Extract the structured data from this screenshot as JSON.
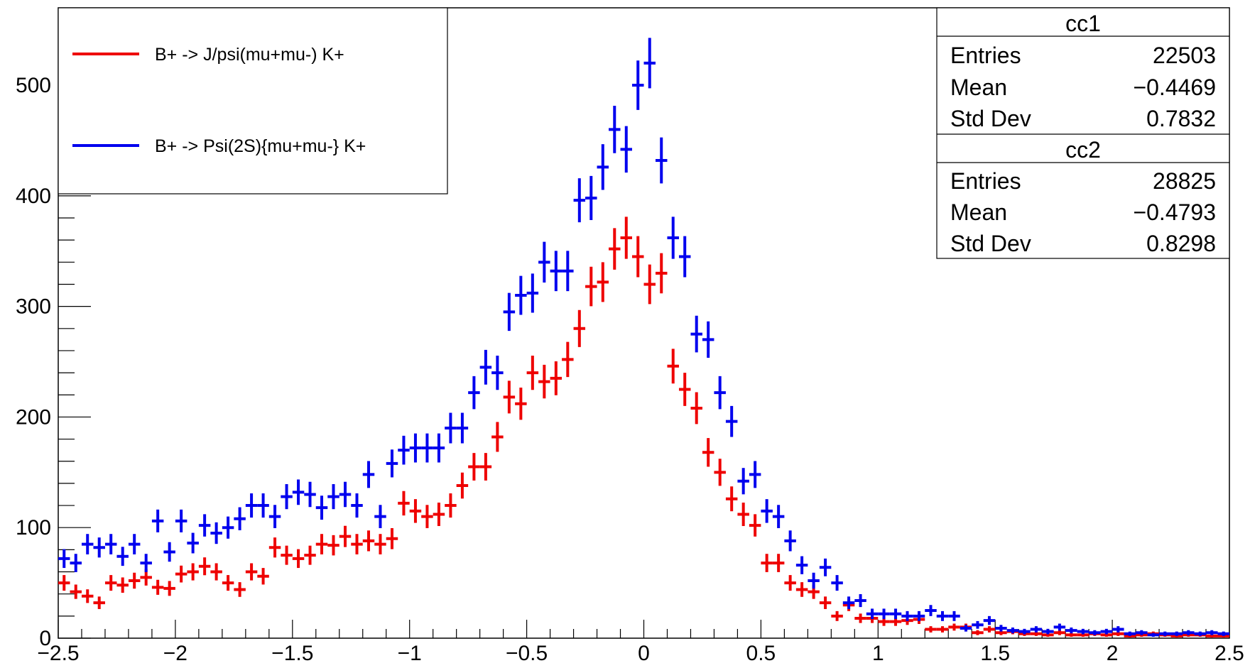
{
  "chart_data": {
    "type": "scatter",
    "title": "",
    "xlabel": "",
    "ylabel": "",
    "xlim": [
      -2.5,
      2.5
    ],
    "ylim": [
      0,
      570
    ],
    "x_ticks": [
      "−2.5",
      "−2",
      "−1.5",
      "−1",
      "−0.5",
      "0",
      "0.5",
      "1",
      "1.5",
      "2",
      "2.5"
    ],
    "y_ticks": [
      "0",
      "100",
      "200",
      "300",
      "400",
      "500"
    ],
    "bin_width": 0.05,
    "legend": {
      "placement": "top-left",
      "entries": [
        {
          "label": "B+ -> J/psi(mu+mu-) K+",
          "color": "#ee0000"
        },
        {
          "label": "B+ -> Psi(2S){mu+mu-} K+",
          "color": "#0000ee"
        }
      ]
    },
    "stats": [
      {
        "title": "cc1",
        "rows": [
          {
            "label": "Entries",
            "value": "22503"
          },
          {
            "label": "Mean",
            "value": "−0.4469"
          },
          {
            "label": "Std Dev",
            "value": "0.7832"
          }
        ]
      },
      {
        "title": "cc2",
        "rows": [
          {
            "label": "Entries",
            "value": "28825"
          },
          {
            "label": "Mean",
            "value": "−0.4793"
          },
          {
            "label": "Std Dev",
            "value": "0.8298"
          }
        ]
      }
    ],
    "series": [
      {
        "name": "B+ -> J/psi(mu+mu-) K+",
        "color": "#ee0000",
        "values": [
          50,
          42,
          38,
          32,
          50,
          48,
          52,
          55,
          46,
          45,
          58,
          60,
          65,
          60,
          50,
          44,
          60,
          56,
          82,
          75,
          72,
          75,
          85,
          84,
          92,
          85,
          88,
          85,
          90,
          122,
          115,
          110,
          112,
          120,
          138,
          155,
          155,
          182,
          218,
          212,
          240,
          232,
          235,
          252,
          280,
          318,
          322,
          352,
          362,
          345,
          320,
          330,
          246,
          225,
          208,
          168,
          150,
          126,
          112,
          102,
          68,
          68,
          50,
          44,
          42,
          32,
          20,
          30,
          18,
          18,
          15,
          15,
          16,
          17,
          8,
          8,
          10,
          10,
          5,
          8,
          5,
          6,
          4,
          4,
          3,
          5,
          3,
          3,
          4,
          3,
          4,
          2,
          3,
          4,
          3,
          2,
          3,
          3,
          2,
          2
        ]
      },
      {
        "name": "B+ -> Psi(2S){mu+mu-} K+",
        "color": "#0000ee",
        "values": [
          72,
          68,
          85,
          82,
          85,
          74,
          85,
          68,
          106,
          78,
          106,
          86,
          102,
          95,
          100,
          108,
          120,
          120,
          110,
          128,
          132,
          130,
          118,
          128,
          130,
          120,
          148,
          110,
          158,
          170,
          172,
          172,
          172,
          190,
          190,
          222,
          245,
          240,
          295,
          310,
          312,
          340,
          332,
          332,
          396,
          398,
          426,
          460,
          442,
          500,
          520,
          432,
          362,
          345,
          275,
          270,
          222,
          196,
          142,
          148,
          115,
          110,
          88,
          66,
          52,
          64,
          50,
          32,
          34,
          22,
          22,
          22,
          20,
          20,
          25,
          20,
          20,
          9,
          12,
          16,
          9,
          7,
          6,
          8,
          6,
          10,
          7,
          6,
          5,
          6,
          8,
          4,
          5,
          3,
          4,
          4,
          5,
          4,
          5,
          4
        ]
      }
    ]
  }
}
